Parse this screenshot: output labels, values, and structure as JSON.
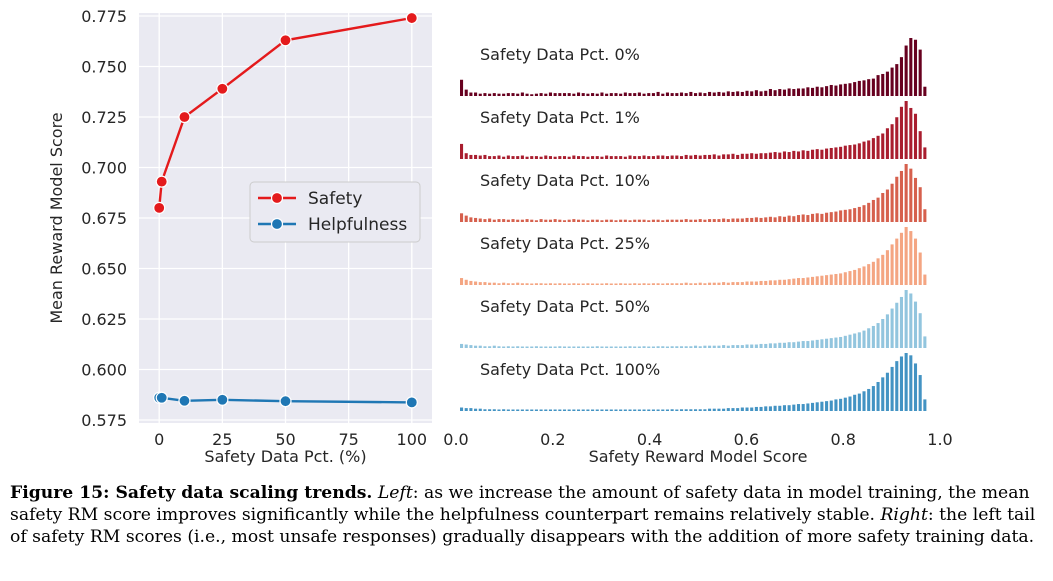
{
  "chart_data": [
    {
      "type": "line",
      "xlabel": "Safety Data Pct. (%)",
      "ylabel": "Mean Reward Model Score",
      "xlim": [
        -8,
        108
      ],
      "ylim": [
        0.5735,
        0.7765
      ],
      "xticks": [
        0,
        25,
        50,
        75,
        100
      ],
      "yticks": [
        0.575,
        0.6,
        0.625,
        0.65,
        0.675,
        0.7,
        0.725,
        0.75,
        0.775
      ],
      "grid": true,
      "legend_position": "center-right",
      "series": [
        {
          "name": "Safety",
          "color": "#e41a1c",
          "x": [
            0,
            1,
            10,
            25,
            50,
            100
          ],
          "y": [
            0.68,
            0.693,
            0.725,
            0.739,
            0.763,
            0.774
          ]
        },
        {
          "name": "Helpfulness",
          "color": "#1f77b4",
          "x": [
            0,
            1,
            10,
            25,
            50,
            100
          ],
          "y": [
            0.586,
            0.586,
            0.5845,
            0.585,
            0.5843,
            0.5837
          ]
        }
      ]
    },
    {
      "type": "bar",
      "subtype": "stacked-histograms",
      "xlabel": "Safety Reward Model Score",
      "xlim": [
        0.0,
        1.0
      ],
      "xticks": [
        "0.0",
        "0.2",
        "0.4",
        "0.6",
        "0.8",
        "1.0"
      ],
      "bins": 100,
      "series": [
        {
          "name": "Safety Data Pct. 0%",
          "color": "#67001f",
          "values": [
            0.28,
            0.11,
            0.06,
            0.06,
            0.04,
            0.05,
            0.04,
            0.05,
            0.04,
            0.04,
            0.05,
            0.05,
            0.04,
            0.06,
            0.04,
            0.03,
            0.04,
            0.05,
            0.04,
            0.06,
            0.05,
            0.05,
            0.05,
            0.05,
            0.04,
            0.06,
            0.05,
            0.04,
            0.05,
            0.04,
            0.06,
            0.04,
            0.05,
            0.05,
            0.04,
            0.06,
            0.05,
            0.05,
            0.06,
            0.04,
            0.05,
            0.05,
            0.07,
            0.04,
            0.06,
            0.05,
            0.05,
            0.06,
            0.05,
            0.07,
            0.05,
            0.06,
            0.05,
            0.07,
            0.06,
            0.07,
            0.06,
            0.08,
            0.07,
            0.08,
            0.07,
            0.09,
            0.08,
            0.1,
            0.08,
            0.09,
            0.12,
            0.1,
            0.12,
            0.11,
            0.13,
            0.12,
            0.13,
            0.13,
            0.15,
            0.14,
            0.16,
            0.15,
            0.17,
            0.19,
            0.18,
            0.2,
            0.21,
            0.22,
            0.24,
            0.26,
            0.27,
            0.29,
            0.3,
            0.36,
            0.38,
            0.42,
            0.49,
            0.55,
            0.67,
            0.87,
            1.0,
            0.97,
            0.8,
            0.16
          ]
        },
        {
          "name": "Safety Data Pct. 1%",
          "color": "#a91d2e",
          "values": [
            0.26,
            0.1,
            0.07,
            0.07,
            0.06,
            0.07,
            0.05,
            0.05,
            0.06,
            0.04,
            0.06,
            0.05,
            0.05,
            0.06,
            0.04,
            0.05,
            0.05,
            0.04,
            0.06,
            0.05,
            0.04,
            0.05,
            0.05,
            0.04,
            0.06,
            0.05,
            0.05,
            0.04,
            0.05,
            0.05,
            0.04,
            0.06,
            0.05,
            0.05,
            0.05,
            0.04,
            0.06,
            0.05,
            0.05,
            0.06,
            0.05,
            0.05,
            0.06,
            0.06,
            0.05,
            0.06,
            0.06,
            0.05,
            0.07,
            0.06,
            0.07,
            0.06,
            0.07,
            0.07,
            0.08,
            0.06,
            0.08,
            0.08,
            0.09,
            0.07,
            0.09,
            0.09,
            0.1,
            0.09,
            0.1,
            0.1,
            0.11,
            0.12,
            0.11,
            0.13,
            0.12,
            0.14,
            0.13,
            0.15,
            0.14,
            0.16,
            0.17,
            0.16,
            0.18,
            0.19,
            0.2,
            0.21,
            0.23,
            0.24,
            0.25,
            0.27,
            0.3,
            0.32,
            0.36,
            0.4,
            0.44,
            0.53,
            0.6,
            0.72,
            0.9,
            1.0,
            0.88,
            0.78,
            0.48,
            0.2
          ]
        },
        {
          "name": "Safety Data Pct. 10%",
          "color": "#d6604d",
          "values": [
            0.15,
            0.11,
            0.08,
            0.07,
            0.06,
            0.05,
            0.06,
            0.04,
            0.05,
            0.05,
            0.04,
            0.05,
            0.04,
            0.04,
            0.05,
            0.04,
            0.03,
            0.05,
            0.04,
            0.04,
            0.05,
            0.04,
            0.03,
            0.04,
            0.05,
            0.04,
            0.04,
            0.03,
            0.04,
            0.04,
            0.03,
            0.04,
            0.04,
            0.03,
            0.04,
            0.04,
            0.03,
            0.04,
            0.04,
            0.04,
            0.03,
            0.04,
            0.04,
            0.03,
            0.04,
            0.04,
            0.04,
            0.04,
            0.05,
            0.04,
            0.04,
            0.05,
            0.04,
            0.05,
            0.05,
            0.05,
            0.06,
            0.05,
            0.06,
            0.06,
            0.06,
            0.07,
            0.07,
            0.08,
            0.07,
            0.08,
            0.09,
            0.08,
            0.1,
            0.09,
            0.11,
            0.1,
            0.12,
            0.13,
            0.12,
            0.14,
            0.15,
            0.14,
            0.16,
            0.17,
            0.18,
            0.2,
            0.21,
            0.22,
            0.24,
            0.26,
            0.29,
            0.33,
            0.38,
            0.42,
            0.5,
            0.56,
            0.66,
            0.78,
            0.88,
            1.0,
            0.92,
            0.76,
            0.6,
            0.22
          ]
        },
        {
          "name": "Safety Data Pct. 25%",
          "color": "#f4a582",
          "values": [
            0.12,
            0.09,
            0.07,
            0.06,
            0.05,
            0.05,
            0.04,
            0.04,
            0.03,
            0.04,
            0.03,
            0.03,
            0.04,
            0.03,
            0.03,
            0.02,
            0.03,
            0.03,
            0.02,
            0.03,
            0.02,
            0.03,
            0.02,
            0.02,
            0.03,
            0.02,
            0.02,
            0.03,
            0.02,
            0.02,
            0.02,
            0.03,
            0.02,
            0.02,
            0.03,
            0.02,
            0.02,
            0.03,
            0.02,
            0.03,
            0.02,
            0.03,
            0.03,
            0.02,
            0.03,
            0.03,
            0.03,
            0.03,
            0.04,
            0.03,
            0.03,
            0.04,
            0.03,
            0.04,
            0.04,
            0.04,
            0.05,
            0.04,
            0.05,
            0.05,
            0.05,
            0.06,
            0.06,
            0.06,
            0.07,
            0.07,
            0.08,
            0.08,
            0.09,
            0.09,
            0.1,
            0.11,
            0.12,
            0.12,
            0.13,
            0.14,
            0.15,
            0.16,
            0.17,
            0.18,
            0.19,
            0.2,
            0.22,
            0.24,
            0.26,
            0.29,
            0.32,
            0.36,
            0.4,
            0.46,
            0.52,
            0.6,
            0.7,
            0.8,
            0.9,
            1.0,
            0.93,
            0.8,
            0.56,
            0.18
          ]
        },
        {
          "name": "Safety Data Pct. 50%",
          "color": "#92c5de",
          "values": [
            0.07,
            0.06,
            0.05,
            0.04,
            0.04,
            0.03,
            0.03,
            0.04,
            0.03,
            0.02,
            0.03,
            0.02,
            0.03,
            0.02,
            0.02,
            0.02,
            0.03,
            0.02,
            0.02,
            0.02,
            0.02,
            0.03,
            0.02,
            0.02,
            0.02,
            0.02,
            0.02,
            0.02,
            0.02,
            0.03,
            0.02,
            0.02,
            0.02,
            0.02,
            0.02,
            0.02,
            0.03,
            0.02,
            0.02,
            0.03,
            0.02,
            0.02,
            0.03,
            0.03,
            0.02,
            0.03,
            0.03,
            0.03,
            0.03,
            0.03,
            0.04,
            0.03,
            0.04,
            0.04,
            0.04,
            0.04,
            0.05,
            0.04,
            0.05,
            0.05,
            0.05,
            0.06,
            0.06,
            0.06,
            0.07,
            0.07,
            0.08,
            0.08,
            0.09,
            0.09,
            0.1,
            0.1,
            0.11,
            0.12,
            0.12,
            0.13,
            0.14,
            0.15,
            0.16,
            0.17,
            0.18,
            0.19,
            0.21,
            0.23,
            0.25,
            0.27,
            0.3,
            0.34,
            0.38,
            0.43,
            0.5,
            0.58,
            0.68,
            0.78,
            0.88,
            1.0,
            0.94,
            0.8,
            0.6,
            0.2
          ]
        },
        {
          "name": "Safety Data Pct. 100%",
          "color": "#4393c3",
          "values": [
            0.06,
            0.05,
            0.05,
            0.04,
            0.04,
            0.03,
            0.03,
            0.03,
            0.02,
            0.03,
            0.02,
            0.02,
            0.02,
            0.02,
            0.02,
            0.02,
            0.02,
            0.02,
            0.02,
            0.02,
            0.02,
            0.02,
            0.02,
            0.02,
            0.02,
            0.02,
            0.02,
            0.02,
            0.02,
            0.02,
            0.02,
            0.02,
            0.02,
            0.02,
            0.02,
            0.02,
            0.02,
            0.02,
            0.02,
            0.02,
            0.02,
            0.02,
            0.02,
            0.02,
            0.02,
            0.03,
            0.02,
            0.03,
            0.03,
            0.03,
            0.03,
            0.03,
            0.03,
            0.04,
            0.04,
            0.04,
            0.04,
            0.05,
            0.05,
            0.05,
            0.06,
            0.06,
            0.06,
            0.07,
            0.07,
            0.08,
            0.08,
            0.09,
            0.09,
            0.1,
            0.1,
            0.11,
            0.12,
            0.12,
            0.13,
            0.14,
            0.15,
            0.16,
            0.17,
            0.18,
            0.2,
            0.21,
            0.23,
            0.25,
            0.28,
            0.3,
            0.34,
            0.38,
            0.43,
            0.5,
            0.58,
            0.66,
            0.76,
            0.86,
            0.94,
            1.0,
            0.96,
            0.82,
            0.62,
            0.2
          ]
        }
      ]
    }
  ],
  "caption": {
    "label": "Figure 15: Safety data scaling trends.",
    "left_label": "Left",
    "left_text": ": as we increase the amount of safety data in model training, the mean safety RM score improves significantly while the helpfulness counterpart remains relatively stable.",
    "right_label": "Right",
    "right_text": ": the left tail of safety RM scores (i.e., most unsafe responses) gradually disappears with the addition of more safety training data."
  }
}
